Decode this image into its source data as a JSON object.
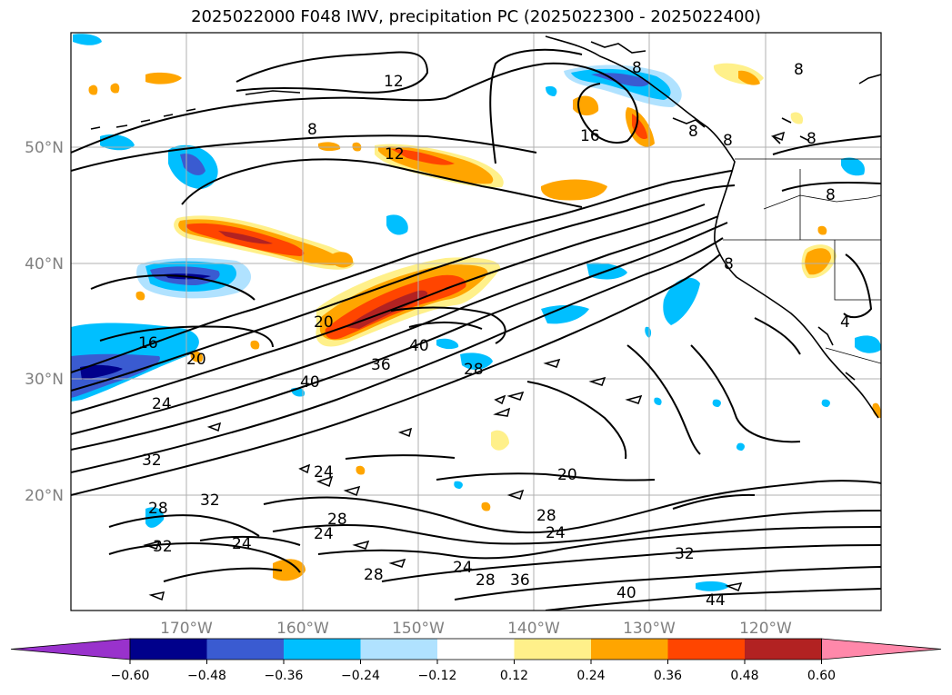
{
  "title": "2025022000 F048 IWV, precipitation PC (2025022300 - 2025022400)",
  "map": {
    "lon_ticks": [
      "170°W",
      "160°W",
      "150°W",
      "140°W",
      "130°W",
      "120°W"
    ],
    "lat_ticks": [
      "50°N",
      "40°N",
      "30°N",
      "20°N"
    ],
    "grid": true
  },
  "contour_labels": [
    "12",
    "8",
    "12",
    "16",
    "8",
    "8",
    "8",
    "8",
    "8",
    "8",
    "8",
    "4",
    "16",
    "20",
    "20",
    "40",
    "36",
    "28",
    "40",
    "24",
    "32",
    "24",
    "28",
    "32",
    "32",
    "28",
    "24",
    "24",
    "28",
    "20",
    "28",
    "24",
    "24",
    "28",
    "36",
    "32",
    "40",
    "44"
  ],
  "colorbar": {
    "ticks": [
      "−0.60",
      "−0.48",
      "−0.36",
      "−0.24",
      "−0.12",
      "0.12",
      "0.24",
      "0.36",
      "0.48",
      "0.60"
    ],
    "colors": [
      "#9932cc",
      "#00008b",
      "#3a5bd1",
      "#00bfff",
      "#b0e2ff",
      "#ffffff",
      "#fff08a",
      "#ffa500",
      "#ff4500",
      "#b22222",
      "#ff88aa"
    ]
  }
}
